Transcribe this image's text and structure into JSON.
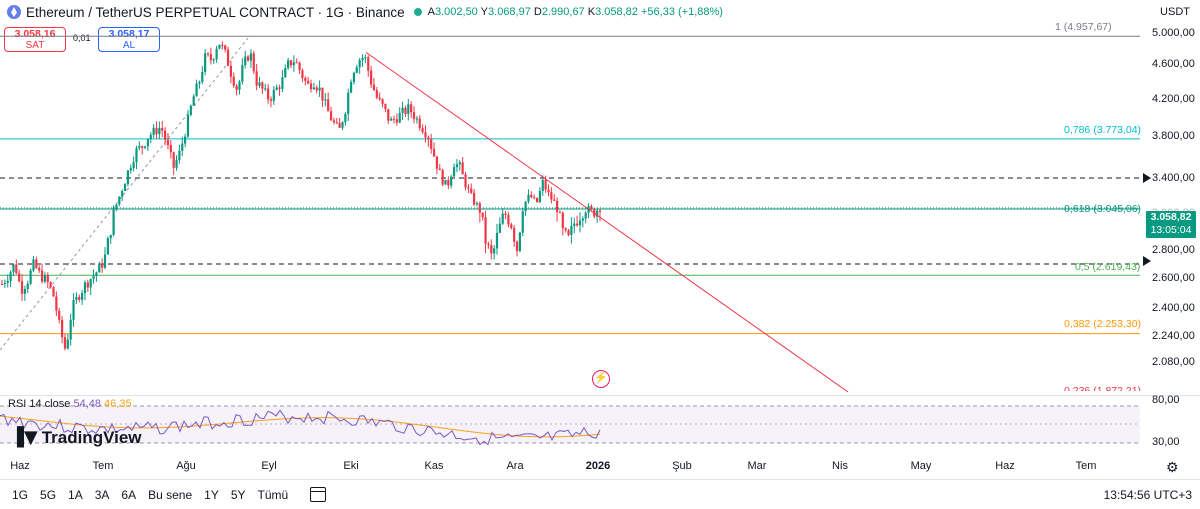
{
  "header": {
    "title": "Ethereum / TetherUS PERPETUAL CONTRACT · 1G · Binance",
    "ohlc": {
      "o_label": "A",
      "o": "3.002,50",
      "h_label": "Y",
      "h": "3.068,97",
      "l_label": "D",
      "l": "2.990,67",
      "c_label": "K",
      "c": "3.058,82",
      "change": "+56,33 (+1,88%)"
    },
    "currency": "USDT",
    "status_color": "#22ab94"
  },
  "trade": {
    "sell_price": "3.058,16",
    "sell_label": "SAT",
    "spread": "0,01",
    "buy_price": "3.058,17",
    "buy_label": "AL"
  },
  "price_axis": [
    "5.000,00",
    "4.600,00",
    "4.200,00",
    "3.800,00",
    "3.400,00",
    "3.000,00",
    "2.800,00",
    "2.600,00",
    "2.400,00",
    "2.240,00",
    "2.080,00"
  ],
  "current_price": {
    "price": "3.058,82",
    "countdown": "13:05:04",
    "color": "#089981"
  },
  "fib": [
    {
      "label": "1 (4.957,67)",
      "color": "#787b86"
    },
    {
      "label": "0,786 (3.773,04)",
      "color": "#00bcd4"
    },
    {
      "label": "0,618 (3.045,06)",
      "color": "#089981"
    },
    {
      "label": "0,5 (2.619,43)",
      "color": "#4caf50"
    },
    {
      "label": "0,382 (2.253,30)",
      "color": "#ff9800"
    },
    {
      "label": "0,236 (1.872,21)",
      "color": "#f23645"
    }
  ],
  "rsi": {
    "label": "RSI 14 close",
    "value": "54,48",
    "ma": "46,35",
    "upper": "80,00",
    "lower": "30,00"
  },
  "logo": {
    "text": "TradingView"
  },
  "time_axis": [
    "Haz",
    "Tem",
    "Ağu",
    "Eyl",
    "Eki",
    "Kas",
    "Ara",
    "2026",
    "Şub",
    "Mar",
    "Nis",
    "May",
    "Haz",
    "Tem"
  ],
  "ranges": [
    "1G",
    "5G",
    "1A",
    "3A",
    "6A",
    "Bu sene",
    "1Y",
    "5Y",
    "Tümü"
  ],
  "clock": "13:54:56 UTC+3",
  "chart_data": {
    "type": "candlestick",
    "title": "Ethereum / TetherUS PERPETUAL CONTRACT · 1G · Binance",
    "x_start": "Haz",
    "x_end": "2026",
    "ylim": [
      1872,
      5150
    ],
    "y_ticks": [
      2080,
      2240,
      2400,
      2600,
      2800,
      3000,
      3400,
      3800,
      4200,
      4600,
      5000
    ],
    "close_path": [
      2560,
      2620,
      2700,
      2520,
      2580,
      2700,
      2620,
      2580,
      2500,
      2300,
      2150,
      2400,
      2480,
      2550,
      2600,
      2650,
      2720,
      2900,
      3100,
      3300,
      3500,
      3650,
      3700,
      3800,
      3850,
      3900,
      3700,
      3500,
      3650,
      3900,
      4200,
      4400,
      4700,
      4650,
      4900,
      4750,
      4500,
      4300,
      4600,
      4750,
      4400,
      4300,
      4200,
      4300,
      4400,
      4600,
      4650,
      4500,
      4350,
      4400,
      4300,
      4100,
      3950,
      3850,
      4100,
      4500,
      4650,
      4700,
      4400,
      4200,
      4100,
      3950,
      4000,
      4050,
      4100,
      4000,
      3900,
      3800,
      3600,
      3400,
      3300,
      3550,
      3500,
      3300,
      3150,
      3050,
      2850,
      2750,
      2900,
      3000,
      2950,
      2800,
      3100,
      3200,
      3100,
      3350,
      3200,
      3100,
      2900,
      2850,
      2950,
      3000,
      3050,
      3010,
      3058
    ],
    "annotations": [
      "1 (4.957,67)",
      "0,786 (3.773,04)",
      "0,618 (3.045,06)",
      "0,5 (2.619,43)",
      "0,382 (2.253,30)",
      "0,236 (1.872,21)"
    ],
    "dashed_levels": [
      3400,
      2700
    ],
    "trendline": {
      "from_value": 4750,
      "from": "Eki",
      "to_value": 1850,
      "to": "Nis"
    },
    "current_price": 3058.82
  }
}
